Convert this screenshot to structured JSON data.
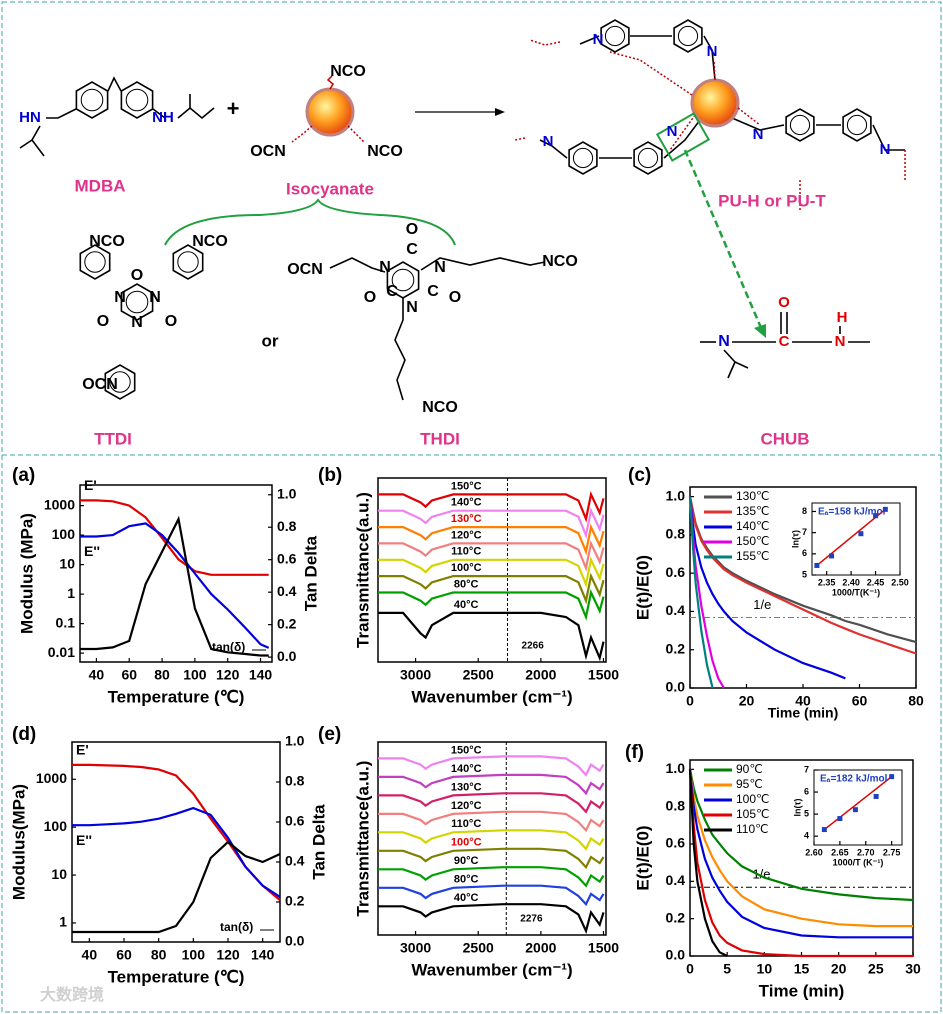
{
  "scheme": {
    "labels": {
      "mdba": "MDBA",
      "plus": "+",
      "isocyanate": "Isocyanate",
      "product": "PU-H or PU-T",
      "ttdi": "TTDI",
      "or": "or",
      "thdi": "THDI",
      "chub": "CHUB"
    },
    "atoms": [
      "HN",
      "NH",
      "NCO",
      "OCN",
      "NCO",
      "NCO",
      "NCO",
      "N",
      "N",
      "N",
      "O",
      "O",
      "O",
      "OCN",
      "OCN",
      "N",
      "N",
      "N",
      "O",
      "O",
      "O",
      "C",
      "C",
      "C",
      "NCO",
      "NCO",
      "N",
      "N",
      "N",
      "N",
      "N",
      "N",
      "N",
      "C",
      "N",
      "H",
      "O"
    ],
    "watermark": "大数跨境"
  },
  "chart_data": [
    {
      "type": "line",
      "label": "(a)",
      "xlabel": "Temperature (℃)",
      "ylabel": "Modulus (MPa)",
      "y2label": "Tan Delta",
      "yscale": "log",
      "legend": "inline",
      "x": [
        30,
        40,
        50,
        60,
        70,
        80,
        90,
        100,
        110,
        120,
        130,
        140,
        145
      ],
      "xlim": [
        30,
        147
      ],
      "xticks": [
        40,
        60,
        80,
        100,
        120,
        140
      ],
      "ylim": [
        0.005,
        5000
      ],
      "yticks": [
        0.01,
        0.1,
        1,
        10,
        100,
        1000
      ],
      "y2lim": [
        -0.03,
        1.06
      ],
      "y2ticks": [
        {
          "value": 0,
          "label": "0.0"
        },
        0.2,
        0.4,
        0.6,
        0.8,
        {
          "value": 1,
          "label": "1.0"
        }
      ],
      "series": [
        {
          "name": "E'",
          "color": "#e00000",
          "values": [
            1500,
            1500,
            1400,
            1000,
            400,
            80,
            15,
            6,
            4.5,
            4.5,
            4.5,
            4.5,
            4.5
          ]
        },
        {
          "name": "E''",
          "color": "#0000e0",
          "values": [
            90,
            90,
            100,
            200,
            250,
            100,
            25,
            5,
            1,
            0.3,
            0.08,
            0.02,
            0.015
          ]
        },
        {
          "name": "tan(δ)",
          "color": "#000000",
          "axis": "y2",
          "values": [
            0.05,
            0.05,
            0.06,
            0.1,
            0.45,
            0.65,
            0.85,
            0.3,
            0.05,
            0.03,
            0.02,
            0.01,
            0.01
          ]
        }
      ]
    },
    {
      "type": "line",
      "label": "(b)",
      "xlabel": "Wavenumber (cm⁻¹)",
      "ylabel": "Transmittance(a.u.)",
      "legend": "inline-curve",
      "x": [
        3300,
        3100,
        2960,
        2920,
        2870,
        2700,
        2300,
        2000,
        1800,
        1700,
        1640,
        1600,
        1530,
        1500
      ],
      "xlim": [
        3300,
        1480
      ],
      "xticks": [
        3000,
        2500,
        2000,
        1500
      ],
      "ylim": [
        -0.2,
        8.8
      ],
      "vlines": [
        2266
      ],
      "series": [
        {
          "name": "150°C",
          "color": "#e00000",
          "values": [
            8,
            8,
            7.6,
            7.4,
            7.7,
            8,
            8,
            8,
            8,
            7.7,
            6.8,
            8,
            7.1,
            7.8
          ]
        },
        {
          "name": "140°C",
          "color": "#ee82ee",
          "values": [
            7.2,
            7.2,
            6.8,
            6.6,
            6.9,
            7.2,
            7.2,
            7.2,
            7.2,
            6.9,
            6,
            7.2,
            6.3,
            7
          ]
        },
        {
          "name": "130°C",
          "color": "#ff7f00",
          "label_color": "#e00000",
          "values": [
            6.4,
            6.4,
            6,
            5.8,
            6.1,
            6.4,
            6.4,
            6.4,
            6.4,
            6.1,
            5.2,
            6.4,
            5.5,
            6.2
          ]
        },
        {
          "name": "120°C",
          "color": "#f08080",
          "values": [
            5.6,
            5.6,
            5.2,
            5,
            5.3,
            5.6,
            5.6,
            5.6,
            5.6,
            5.3,
            4.4,
            5.6,
            4.7,
            5.4
          ]
        },
        {
          "name": "110°C",
          "color": "#d4d400",
          "values": [
            4.8,
            4.8,
            4.4,
            4.2,
            4.5,
            4.8,
            4.8,
            4.8,
            4.8,
            4.5,
            3.6,
            4.8,
            3.9,
            4.6
          ]
        },
        {
          "name": "100°C",
          "color": "#808000",
          "values": [
            4,
            4,
            3.6,
            3.4,
            3.7,
            4,
            4,
            4,
            4,
            3.7,
            2.8,
            4,
            3.1,
            3.8
          ]
        },
        {
          "name": "80°C",
          "color": "#00a000",
          "values": [
            3.2,
            3.2,
            2.8,
            2.6,
            2.9,
            3.2,
            3.2,
            3.2,
            3.2,
            2.9,
            2,
            3.2,
            2.3,
            3
          ]
        },
        {
          "name": "40°C",
          "color": "#000000",
          "values": [
            2.2,
            2.2,
            1.2,
            1,
            1.6,
            2.2,
            2.2,
            2.2,
            2,
            1.6,
            0.1,
            1,
            0,
            0.8
          ]
        }
      ]
    },
    {
      "type": "line",
      "label": "(c)",
      "xlabel": "Time (min)",
      "ylabel": "E(t)/E(0)",
      "legend": "upper left",
      "x": [
        0,
        1,
        2,
        4,
        6,
        8,
        10,
        12,
        15,
        20,
        30,
        40,
        50,
        55,
        60,
        70,
        80
      ],
      "xlim": [
        0,
        80
      ],
      "xticks": [
        0,
        20,
        40,
        60,
        80
      ],
      "ylim": [
        0,
        1.05
      ],
      "yticks": [
        {
          "value": 0,
          "label": "0.0"
        },
        0.2,
        0.4,
        0.6,
        0.8,
        {
          "value": 1,
          "label": "1.0"
        }
      ],
      "hlines": [
        {
          "value": 0.368,
          "label": "1/e"
        }
      ],
      "series": [
        {
          "name": "130℃",
          "color": "#505050",
          "values": [
            1,
            0.93,
            0.86,
            0.78,
            0.73,
            0.69,
            0.66,
            0.63,
            0.6,
            0.56,
            0.49,
            0.43,
            0.38,
            0.35,
            0.33,
            0.28,
            0.24
          ]
        },
        {
          "name": "135℃",
          "color": "#e03030",
          "values": [
            1,
            0.92,
            0.85,
            0.77,
            0.72,
            0.68,
            0.65,
            0.62,
            0.59,
            0.55,
            0.48,
            0.41,
            0.34,
            0.31,
            0.28,
            0.23,
            0.18
          ]
        },
        {
          "name": "140℃",
          "color": "#0000e0",
          "values": [
            1,
            0.86,
            0.75,
            0.63,
            0.55,
            0.49,
            0.44,
            0.4,
            0.35,
            0.29,
            0.2,
            0.13,
            0.08,
            0.05,
            null,
            null,
            null
          ]
        },
        {
          "name": "150℃",
          "color": "#e000e0",
          "values": [
            1,
            0.8,
            0.64,
            0.43,
            0.27,
            0.14,
            0.05,
            0,
            null,
            null,
            null,
            null,
            null,
            null,
            null,
            null,
            null
          ]
        },
        {
          "name": "155℃",
          "color": "#008080",
          "values": [
            1,
            0.75,
            0.55,
            0.3,
            0.12,
            0,
            null,
            null,
            null,
            null,
            null,
            null,
            null,
            null,
            null,
            null,
            null
          ]
        }
      ]
    },
    {
      "type": "line",
      "label": "(d)",
      "xlabel": "Temperature (℃)",
      "ylabel": "Modulus(MPa)",
      "y2label": "Tan Delta",
      "yscale": "log",
      "legend": "inline",
      "x": [
        30,
        40,
        50,
        60,
        70,
        80,
        90,
        100,
        110,
        120,
        130,
        140,
        150
      ],
      "xlim": [
        30,
        150
      ],
      "xticks": [
        40,
        60,
        80,
        100,
        120,
        140
      ],
      "ylim": [
        0.4,
        6000
      ],
      "yticks": [
        1,
        10,
        100,
        1000
      ],
      "y2lim": [
        0,
        1
      ],
      "y2ticks": [
        {
          "value": 0,
          "label": "0.0"
        },
        0.2,
        0.4,
        0.6,
        0.8,
        {
          "value": 1,
          "label": "1.0"
        }
      ],
      "series": [
        {
          "name": "E'",
          "color": "#e00000",
          "values": [
            2000,
            2000,
            1950,
            1900,
            1800,
            1600,
            1200,
            500,
            150,
            50,
            15,
            6,
            3
          ]
        },
        {
          "name": "E''",
          "color": "#0000e0",
          "values": [
            110,
            110,
            115,
            120,
            130,
            150,
            190,
            250,
            180,
            60,
            15,
            6,
            3.5
          ]
        },
        {
          "name": "tan(δ)",
          "color": "#000000",
          "axis": "y2",
          "values": [
            0.05,
            0.05,
            0.05,
            0.05,
            0.05,
            0.05,
            0.08,
            0.2,
            0.42,
            0.5,
            0.43,
            0.4,
            0.44
          ]
        }
      ]
    },
    {
      "type": "line",
      "label": "(e)",
      "xlabel": "Wavenumber (cm⁻¹)",
      "ylabel": "Transmittance(a.u.)",
      "legend": "inline-curve",
      "x": [
        3300,
        3100,
        2960,
        2920,
        2870,
        2700,
        2300,
        2000,
        1800,
        1700,
        1640,
        1600,
        1530,
        1500
      ],
      "xlim": [
        3300,
        1480
      ],
      "xticks": [
        3000,
        2500,
        2000,
        1500
      ],
      "ylim": [
        0,
        9.4
      ],
      "vlines": [
        2276
      ],
      "series": [
        {
          "name": "150°C",
          "color": "#ee82ee",
          "values": [
            8.6,
            8.6,
            8.3,
            8.1,
            8.3,
            8.6,
            8.7,
            8.7,
            8.6,
            8.2,
            7.8,
            8.3,
            8,
            8.3
          ]
        },
        {
          "name": "140°C",
          "color": "#c040c0",
          "values": [
            7.7,
            7.7,
            7.4,
            7.2,
            7.4,
            7.7,
            7.8,
            7.8,
            7.7,
            7.3,
            6.9,
            7.4,
            7.1,
            7.4
          ]
        },
        {
          "name": "130°C",
          "color": "#d0206a",
          "values": [
            6.8,
            6.8,
            6.5,
            6.3,
            6.5,
            6.8,
            6.9,
            6.9,
            6.8,
            6.4,
            6,
            6.5,
            6.2,
            6.5
          ]
        },
        {
          "name": "120°C",
          "color": "#f08080",
          "values": [
            5.9,
            5.9,
            5.6,
            5.4,
            5.6,
            5.9,
            6,
            6,
            5.9,
            5.5,
            5.1,
            5.6,
            5.3,
            5.6
          ]
        },
        {
          "name": "110°C",
          "color": "#d4d400",
          "values": [
            5,
            5,
            4.7,
            4.5,
            4.7,
            5,
            5.1,
            5.1,
            5,
            4.6,
            4.2,
            4.7,
            4.4,
            4.7
          ]
        },
        {
          "name": "100°C",
          "color": "#808000",
          "label_color": "#e00000",
          "values": [
            4.1,
            4.1,
            3.8,
            3.6,
            3.8,
            4.1,
            4.2,
            4.2,
            4.1,
            3.7,
            3.3,
            3.8,
            3.5,
            3.8
          ]
        },
        {
          "name": "90°C",
          "color": "#00a000",
          "values": [
            3.2,
            3.2,
            2.9,
            2.7,
            2.9,
            3.2,
            3.3,
            3.3,
            3.2,
            2.8,
            2.4,
            2.9,
            2.6,
            2.9
          ]
        },
        {
          "name": "80°C",
          "color": "#2040e0",
          "values": [
            2.3,
            2.3,
            2,
            1.8,
            2,
            2.3,
            2.4,
            2.4,
            2.3,
            1.9,
            1.5,
            2,
            1.7,
            2
          ]
        },
        {
          "name": "40°C",
          "color": "#000000",
          "values": [
            1.4,
            1.4,
            1.1,
            0.9,
            1.1,
            1.4,
            1.5,
            1.5,
            1.4,
            1,
            0.2,
            1.1,
            0.5,
            1.1
          ]
        }
      ]
    },
    {
      "type": "line",
      "label": "(f)",
      "xlabel": "Time (min)",
      "ylabel": "E(t)/E(0)",
      "legend": "upper left",
      "x": [
        0,
        0.5,
        1,
        2,
        3,
        4,
        5,
        7,
        10,
        15,
        20,
        25,
        30
      ],
      "xlim": [
        0,
        30
      ],
      "xticks": [
        0,
        5,
        10,
        15,
        20,
        25,
        30
      ],
      "ylim": [
        0,
        1.05
      ],
      "yticks": [
        {
          "value": 0,
          "label": "0.0"
        },
        0.2,
        0.4,
        0.6,
        0.8,
        {
          "value": 1,
          "label": "1.0"
        }
      ],
      "hlines": [
        {
          "value": 0.368,
          "label": "1/e"
        }
      ],
      "series": [
        {
          "name": "90℃",
          "color": "#008000",
          "values": [
            1,
            0.9,
            0.83,
            0.73,
            0.65,
            0.6,
            0.55,
            0.48,
            0.42,
            0.36,
            0.33,
            0.31,
            0.3
          ]
        },
        {
          "name": "95℃",
          "color": "#ff8c00",
          "values": [
            1,
            0.85,
            0.75,
            0.62,
            0.53,
            0.46,
            0.4,
            0.32,
            0.25,
            0.2,
            0.17,
            0.16,
            0.16
          ]
        },
        {
          "name": "100℃",
          "color": "#0000e0",
          "values": [
            1,
            0.8,
            0.68,
            0.52,
            0.42,
            0.35,
            0.29,
            0.21,
            0.15,
            0.11,
            0.1,
            0.1,
            0.1
          ]
        },
        {
          "name": "105℃",
          "color": "#e00000",
          "values": [
            1,
            0.7,
            0.5,
            0.3,
            0.18,
            0.11,
            0.07,
            0.03,
            0.01,
            0,
            0,
            0,
            0
          ]
        },
        {
          "name": "110℃",
          "color": "#000000",
          "values": [
            1,
            0.6,
            0.4,
            0.2,
            0.08,
            0.02,
            0,
            null,
            null,
            null,
            null,
            null,
            null
          ]
        }
      ]
    },
    {
      "type": "scatter",
      "xlabel": "1000/T(K⁻¹)",
      "ylabel": "ln(τ)",
      "annotation": "Eₐ=158 kJ/mol",
      "color": "#2040c0",
      "fit_color": "#e00000",
      "x": [
        2.33,
        2.36,
        2.42,
        2.45,
        2.47
      ],
      "values": [
        5.45,
        5.9,
        6.95,
        7.8,
        8.1
      ],
      "xlim": [
        2.32,
        2.5
      ],
      "xticks": [
        2.35,
        {
          "value": 2.4,
          "label": "2.40"
        },
        2.45,
        {
          "value": 2.5,
          "label": "2.50"
        }
      ],
      "ylim": [
        5,
        8.4
      ],
      "yticks": [
        5,
        6,
        7,
        8
      ]
    },
    {
      "type": "scatter",
      "xlabel": "1000/T (K⁻¹)",
      "ylabel": "ln(τ)",
      "annotation": "Eₐ=182 kJ/mol",
      "color": "#2040c0",
      "fit_color": "#e00000",
      "x": [
        2.62,
        2.65,
        2.68,
        2.72,
        2.75
      ],
      "values": [
        4.3,
        4.8,
        5.2,
        5.8,
        6.7
      ],
      "xlim": [
        2.6,
        2.77
      ],
      "xticks": [
        {
          "value": 2.6,
          "label": "2.60"
        },
        2.65,
        {
          "value": 2.7,
          "label": "2.70"
        },
        2.75
      ],
      "ylim": [
        3.6,
        7
      ],
      "yticks": [
        4,
        5,
        6,
        7
      ]
    }
  ]
}
